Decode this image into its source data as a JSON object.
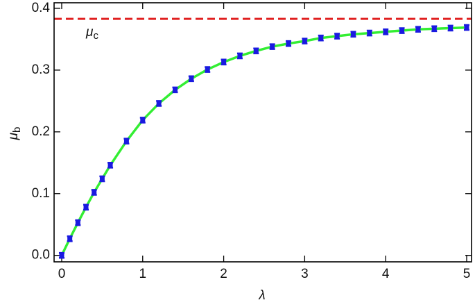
{
  "chart_data": {
    "type": "errorbar",
    "xlabel": "λ",
    "ylabel": "μ",
    "ylabel_sub": "b",
    "xlim": [
      -0.094,
      5.06
    ],
    "ylim": [
      -0.0105,
      0.409
    ],
    "xticks": [
      0,
      1,
      2,
      3,
      4,
      5
    ],
    "yticks": [
      {
        "value": 0,
        "label": "0.0"
      },
      0.1,
      0.2,
      0.3,
      0.4
    ],
    "hline": {
      "value": 0.383,
      "color": "#e02020",
      "label": "μ",
      "label_sub": "c"
    },
    "fit": {
      "color": "#33ee33",
      "x": [
        0,
        0.1,
        0.2,
        0.3,
        0.4,
        0.5,
        0.6,
        0.8,
        1.0,
        1.2,
        1.4,
        1.6,
        1.8,
        2.0,
        2.2,
        2.4,
        2.6,
        2.8,
        3.0,
        3.2,
        3.4,
        3.6,
        3.8,
        4.0,
        4.2,
        4.4,
        4.6,
        4.8,
        5.0
      ],
      "values": [
        0.0,
        0.027,
        0.053,
        0.078,
        0.102,
        0.124,
        0.146,
        0.185,
        0.219,
        0.246,
        0.268,
        0.286,
        0.301,
        0.313,
        0.323,
        0.331,
        0.338,
        0.343,
        0.347,
        0.352,
        0.355,
        0.358,
        0.36,
        0.362,
        0.364,
        0.366,
        0.367,
        0.368,
        0.369
      ]
    },
    "points": {
      "color": "#1a1ae0",
      "x": [
        0,
        0.1,
        0.2,
        0.3,
        0.4,
        0.5,
        0.6,
        0.8,
        1.0,
        1.2,
        1.4,
        1.6,
        1.8,
        2.0,
        2.2,
        2.4,
        2.6,
        2.8,
        3.0,
        3.2,
        3.4,
        3.6,
        3.8,
        4.0,
        4.2,
        4.4,
        4.6,
        4.8,
        5.0
      ],
      "values": [
        0.0,
        0.027,
        0.053,
        0.078,
        0.102,
        0.124,
        0.146,
        0.185,
        0.219,
        0.246,
        0.268,
        0.286,
        0.301,
        0.313,
        0.323,
        0.331,
        0.338,
        0.343,
        0.347,
        0.352,
        0.355,
        0.358,
        0.36,
        0.362,
        0.364,
        0.366,
        0.367,
        0.368,
        0.369
      ],
      "errors": [
        0.004,
        0.004,
        0.004,
        0.004,
        0.004,
        0.004,
        0.004,
        0.004,
        0.004,
        0.004,
        0.004,
        0.004,
        0.004,
        0.004,
        0.004,
        0.004,
        0.004,
        0.004,
        0.004,
        0.004,
        0.004,
        0.004,
        0.004,
        0.004,
        0.004,
        0.004,
        0.004,
        0.004,
        0.004
      ]
    }
  }
}
